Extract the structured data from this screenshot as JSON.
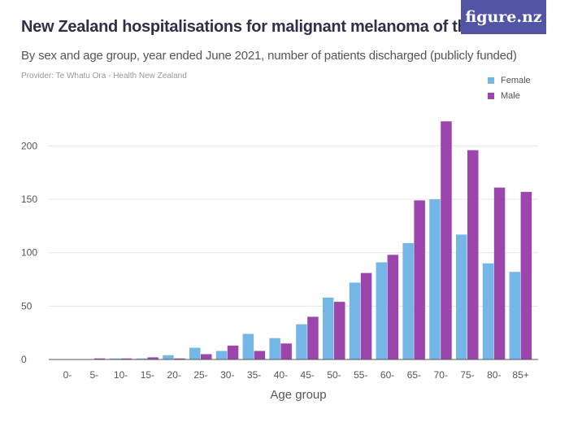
{
  "header": {
    "title": "New Zealand hospitalisations for malignant melanoma of the skin",
    "subtitle": "By sex and age group, year ended June 2021, number of patients discharged (publicly funded)",
    "provider": "Provider: Te Whatu Ora - Health New Zealand",
    "logo_text": "figure.nz"
  },
  "colors": {
    "female": "#74b6e6",
    "male": "#9b45ad",
    "grid": "#e6e6e6",
    "axis": "#555555"
  },
  "chart_data": {
    "type": "bar",
    "title": "New Zealand hospitalisations for malignant melanoma of the skin",
    "xlabel": "Age group",
    "ylabel": "",
    "ylim": [
      0,
      230
    ],
    "yticks": [
      0,
      50,
      100,
      150,
      200
    ],
    "legend_position": "top-right",
    "categories": [
      "0-",
      "5-",
      "10-",
      "15-",
      "20-",
      "25-",
      "30-",
      "35-",
      "40-",
      "45-",
      "50-",
      "55-",
      "60-",
      "65-",
      "70-",
      "75-",
      "80-",
      "85+"
    ],
    "series": [
      {
        "name": "Female",
        "values": [
          0,
          0,
          1,
          1,
          4,
          11,
          8,
          24,
          20,
          33,
          58,
          72,
          91,
          109,
          150,
          117,
          90,
          82
        ]
      },
      {
        "name": "Male",
        "values": [
          0,
          1,
          1,
          2,
          1,
          5,
          13,
          8,
          15,
          40,
          54,
          81,
          98,
          149,
          223,
          196,
          161,
          157
        ]
      }
    ]
  }
}
